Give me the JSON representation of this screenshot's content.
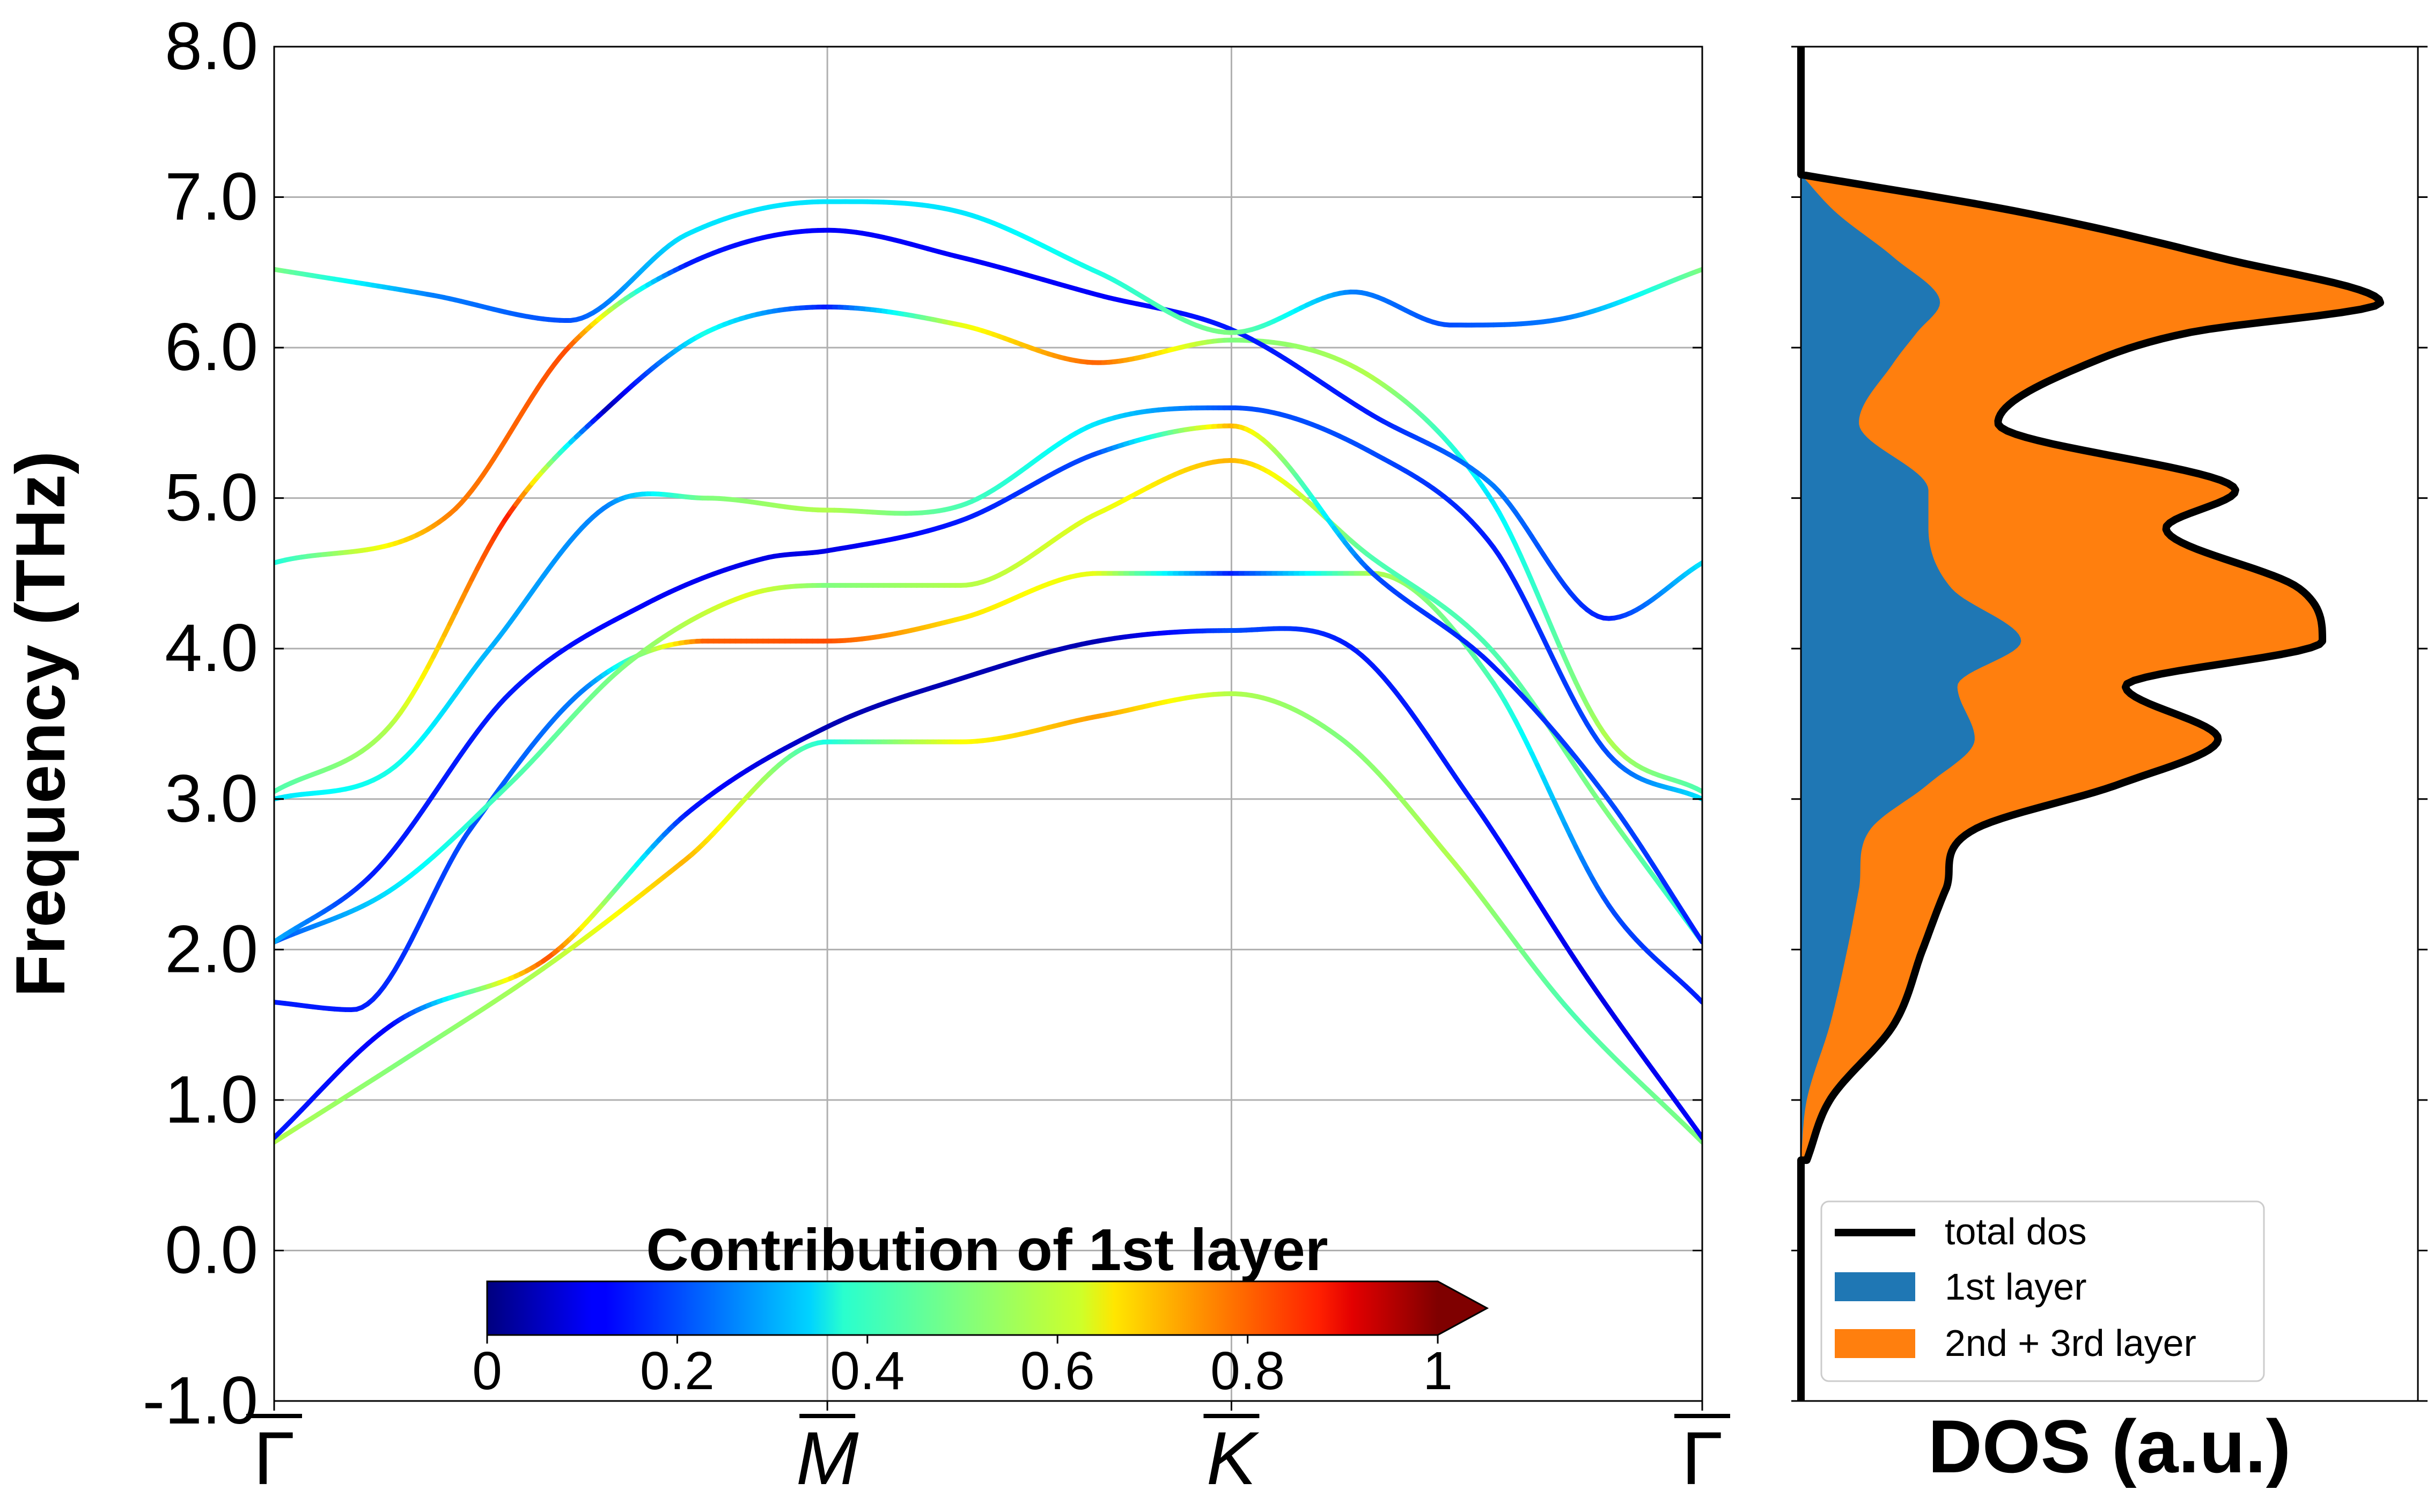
{
  "chart_data": [
    {
      "type": "line",
      "ylabel": "Frequency (THz)",
      "ylim": [
        -1.0,
        8.0
      ],
      "yticks": [
        "-1.0",
        "0.0",
        "1.0",
        "2.0",
        "3.0",
        "4.0",
        "5.0",
        "6.0",
        "7.0",
        "8.0"
      ],
      "xlim": [
        0,
        3.64
      ],
      "xticks": [
        {
          "x": 0.0,
          "label": "Γ"
        },
        {
          "x": 1.41,
          "label": "M"
        },
        {
          "x": 2.44,
          "label": "K"
        },
        {
          "x": 3.64,
          "label": "Γ"
        }
      ],
      "grid": true,
      "colorbar": {
        "label": "Contribution of 1st layer",
        "colormap": "jet",
        "ticks": [
          "0",
          "0.2",
          "0.4",
          "0.6",
          "0.8",
          "1"
        ],
        "range": [
          0,
          1
        ],
        "extend": "max"
      },
      "series": [
        {
          "x": [
            0,
            0.35,
            0.7,
            1.05,
            1.41,
            1.75,
            2.1,
            2.44,
            2.72,
            3.0,
            3.3,
            3.64
          ],
          "y": [
            0.72,
            1.3,
            1.9,
            2.6,
            3.38,
            3.38,
            3.55,
            3.7,
            3.4,
            2.6,
            1.6,
            0.72
          ],
          "c": [
            0.55,
            0.5,
            0.55,
            0.7,
            0.4,
            0.62,
            0.72,
            0.55,
            0.5,
            0.55,
            0.45,
            0.5
          ]
        },
        {
          "x": [
            0,
            0.3,
            0.7,
            1.05,
            1.41,
            1.75,
            2.1,
            2.44,
            2.75,
            3.05,
            3.35,
            3.64
          ],
          "y": [
            0.75,
            1.5,
            1.95,
            2.9,
            3.48,
            3.8,
            4.05,
            4.12,
            4.0,
            3.0,
            1.8,
            0.75
          ],
          "c": [
            0.15,
            0.12,
            0.8,
            0.15,
            0.05,
            0.05,
            0.05,
            0.2,
            0.15,
            0.15,
            0.1,
            0.12
          ]
        },
        {
          "x": [
            0,
            0.2,
            0.5,
            0.8,
            1.1,
            1.41,
            1.75,
            2.1,
            2.44,
            2.8,
            3.1,
            3.4,
            3.64
          ],
          "y": [
            1.65,
            1.6,
            2.8,
            3.75,
            4.05,
            4.05,
            4.2,
            4.5,
            4.5,
            4.5,
            3.8,
            2.3,
            1.65
          ],
          "c": [
            0.15,
            0.15,
            0.2,
            0.25,
            0.78,
            0.8,
            0.65,
            0.6,
            0.15,
            0.55,
            0.45,
            0.2,
            0.15
          ]
        },
        {
          "x": [
            0,
            0.3,
            0.6,
            0.9,
            1.2,
            1.41,
            1.75,
            2.1,
            2.44,
            2.8,
            3.1,
            3.4,
            3.64
          ],
          "y": [
            2.05,
            2.4,
            3.1,
            3.9,
            4.35,
            4.42,
            4.42,
            4.9,
            5.25,
            4.6,
            4.0,
            2.9,
            2.05
          ],
          "c": [
            0.2,
            0.35,
            0.45,
            0.5,
            0.6,
            0.5,
            0.55,
            0.6,
            0.7,
            0.45,
            0.45,
            0.5,
            0.4
          ]
        },
        {
          "x": [
            0,
            0.25,
            0.6,
            0.95,
            1.25,
            1.41,
            1.75,
            2.1,
            2.44,
            2.8,
            3.1,
            3.4,
            3.64
          ],
          "y": [
            2.05,
            2.5,
            3.7,
            4.3,
            4.6,
            4.65,
            4.85,
            5.3,
            5.48,
            4.5,
            3.9,
            3.0,
            2.05
          ],
          "c": [
            0.3,
            0.15,
            0.15,
            0.12,
            0.1,
            0.1,
            0.15,
            0.2,
            0.7,
            0.2,
            0.15,
            0.2,
            0.15
          ]
        },
        {
          "x": [
            0,
            0.3,
            0.55,
            0.85,
            1.1,
            1.41,
            1.75,
            2.1,
            2.44,
            2.8,
            3.1,
            3.4,
            3.64
          ],
          "y": [
            3.0,
            3.2,
            4.0,
            4.95,
            5.0,
            4.92,
            4.95,
            5.5,
            5.6,
            5.3,
            4.7,
            3.3,
            3.0
          ],
          "c": [
            0.35,
            0.4,
            0.3,
            0.25,
            0.5,
            0.55,
            0.45,
            0.35,
            0.2,
            0.2,
            0.15,
            0.2,
            0.35
          ]
        },
        {
          "x": [
            0,
            0.3,
            0.6,
            0.85,
            1.1,
            1.41,
            1.75,
            2.1,
            2.44,
            2.8,
            3.1,
            3.4,
            3.64
          ],
          "y": [
            3.05,
            3.5,
            4.9,
            5.6,
            6.1,
            6.27,
            6.15,
            5.9,
            6.05,
            5.8,
            5.0,
            3.4,
            3.05
          ],
          "c": [
            0.45,
            0.55,
            0.85,
            0.05,
            0.4,
            0.15,
            0.6,
            0.78,
            0.5,
            0.55,
            0.35,
            0.55,
            0.45
          ]
        },
        {
          "x": [
            0,
            0.45,
            0.75,
            1.05,
            1.41,
            1.75,
            2.1,
            2.44,
            2.8,
            3.1,
            3.4,
            3.64
          ],
          "y": [
            4.57,
            4.9,
            6.0,
            6.55,
            6.78,
            6.6,
            6.35,
            6.12,
            5.55,
            5.1,
            4.2,
            4.57
          ],
          "c": [
            0.4,
            0.75,
            0.8,
            0.15,
            0.12,
            0.12,
            0.12,
            0.15,
            0.15,
            0.25,
            0.15,
            0.35
          ]
        },
        {
          "x": [
            0,
            0.4,
            0.75,
            1.05,
            1.41,
            1.75,
            2.1,
            2.44,
            2.75,
            3.0,
            3.3,
            3.64
          ],
          "y": [
            6.52,
            6.35,
            6.18,
            6.75,
            6.97,
            6.9,
            6.5,
            6.1,
            6.37,
            6.15,
            6.2,
            6.52
          ],
          "c": [
            0.5,
            0.25,
            0.2,
            0.35,
            0.35,
            0.35,
            0.4,
            0.5,
            0.25,
            0.2,
            0.25,
            0.5
          ]
        }
      ]
    },
    {
      "type": "area",
      "xlabel": "DOS (a.u.)",
      "ylim": [
        -1.0,
        8.0
      ],
      "legend": "lower-left",
      "series": [
        {
          "name": "total dos",
          "color": "#000000",
          "y": [
            0.6,
            1.0,
            1.5,
            2.0,
            2.4,
            2.8,
            3.1,
            3.4,
            3.75,
            4.05,
            4.4,
            4.8,
            5.05,
            5.5,
            5.9,
            6.1,
            6.3,
            6.6,
            6.9,
            7.15
          ],
          "v": [
            0.01,
            0.05,
            0.16,
            0.21,
            0.25,
            0.3,
            0.55,
            0.72,
            0.56,
            0.9,
            0.86,
            0.63,
            0.75,
            0.34,
            0.5,
            0.67,
            1.0,
            0.72,
            0.38,
            0.0
          ]
        },
        {
          "name": "1st layer",
          "color": "#1f77b4",
          "y": [
            0.6,
            1.0,
            1.5,
            2.0,
            2.4,
            2.8,
            3.1,
            3.4,
            3.75,
            4.05,
            4.4,
            4.8,
            5.05,
            5.5,
            5.9,
            6.1,
            6.3,
            6.6,
            6.9,
            7.15
          ],
          "v": [
            0.0,
            0.01,
            0.05,
            0.08,
            0.1,
            0.12,
            0.22,
            0.3,
            0.27,
            0.38,
            0.26,
            0.22,
            0.22,
            0.1,
            0.16,
            0.2,
            0.24,
            0.16,
            0.06,
            0.0
          ]
        },
        {
          "name": "2nd + 3rd layer",
          "color": "#ff7f0e"
        }
      ]
    }
  ],
  "colors": {
    "total_dos": "#000000",
    "first_layer": "#1f77b4",
    "second_third_layer": "#ff7f0e",
    "grid": "#b0b0b0"
  }
}
